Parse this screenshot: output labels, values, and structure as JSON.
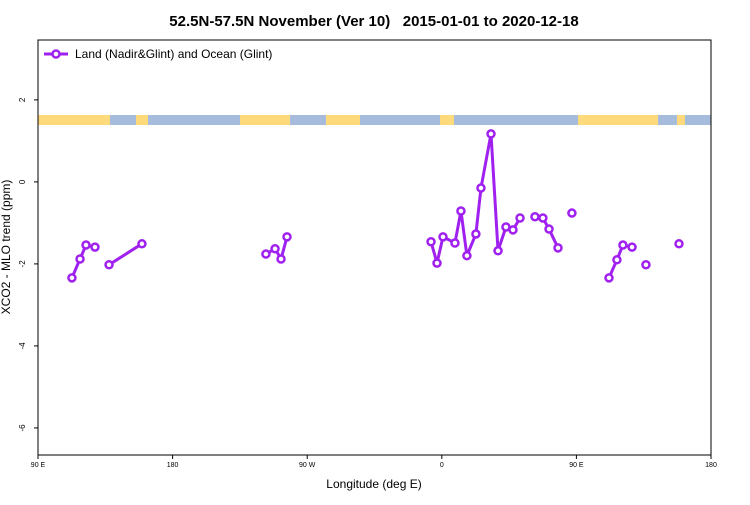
{
  "chart_data": {
    "type": "line",
    "title": "52.5N-57.5N November (Ver 10)   2015-01-01 to 2020-12-18",
    "xlabel": "Longitude (deg E)",
    "ylabel": "XCO2 - MLO trend (ppm)",
    "x": [
      112.7,
      118.1,
      122.1,
      128.1,
      null,
      137.5,
      159.5,
      null,
      242.4,
      248.5,
      252.5,
      256.5,
      null,
      352.8,
      356.8,
      360.8,
      368.8,
      372.8,
      376.8,
      382.8,
      386.2,
      392.9,
      397.6,
      402.9,
      407.6,
      412.3,
      null,
      422.3,
      427.6,
      431.7,
      437.7,
      null,
      447.0,
      null,
      471.8,
      477.1,
      481.1,
      487.2,
      null,
      496.5,
      null,
      518.6
    ],
    "series": [
      {
        "name": "Land (Nadir&Glint) and Ocean (Glint)",
        "color": "#a020f0",
        "values": [
          -2.34,
          -1.88,
          -1.54,
          -1.59,
          null,
          -2.02,
          -1.51,
          null,
          -1.76,
          -1.63,
          -1.88,
          -1.34,
          null,
          -1.46,
          -1.98,
          -1.34,
          -1.49,
          -0.71,
          -1.8,
          -1.27,
          -0.15,
          1.17,
          -1.68,
          -1.1,
          -1.17,
          -0.88,
          null,
          -0.85,
          -0.88,
          -1.15,
          -1.61,
          null,
          -0.76,
          null,
          -2.34,
          -1.9,
          -1.54,
          -1.59,
          null,
          -2.02,
          null,
          -1.51
        ]
      }
    ],
    "xlim": [
      90,
      540
    ],
    "xticks": [
      {
        "value": 90,
        "label": "90 E"
      },
      {
        "value": 180,
        "label": "180"
      },
      {
        "value": 270,
        "label": "90 W"
      },
      {
        "value": 360,
        "label": "0"
      },
      {
        "value": 450,
        "label": "90 E"
      },
      {
        "value": 540,
        "label": "180"
      }
    ],
    "ylim": [
      -6.66,
      3.46
    ],
    "yticks": [
      -6,
      -4,
      -2,
      0,
      2
    ],
    "legend": "top-left"
  }
}
